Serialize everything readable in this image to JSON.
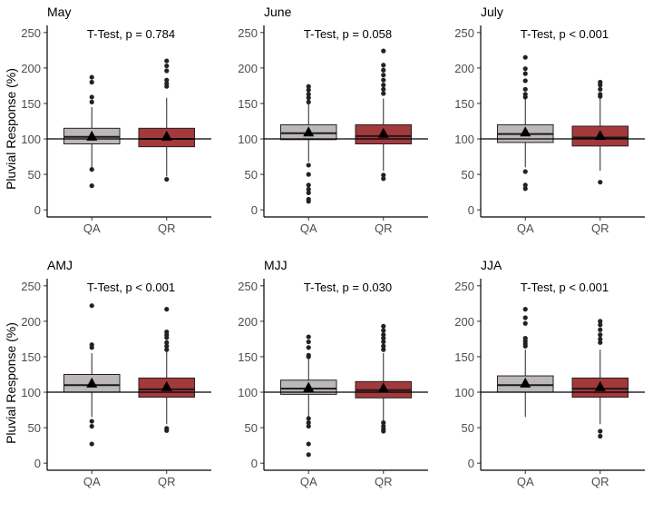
{
  "ylabel": "Pluvial Response (%)",
  "reference_line": 100,
  "colors": {
    "QA": "#bdb8b8",
    "QR": "#a4393c",
    "median": "#1a1a1a",
    "mean": "#000000",
    "outlier": "#222222"
  },
  "chart_data": [
    {
      "type": "boxplot",
      "title": "May",
      "annotation": "T-Test, p = 0.784",
      "ylim": [
        0,
        250
      ],
      "yticks": [
        0,
        50,
        100,
        150,
        200,
        250
      ],
      "categories": [
        "QA",
        "QR"
      ],
      "boxes": [
        {
          "name": "QA",
          "q1": 93,
          "median": 103,
          "q3": 115,
          "whisker_low": 60,
          "whisker_high": 145,
          "mean": 104,
          "outliers": [
            187,
            180,
            159,
            152,
            57,
            34
          ]
        },
        {
          "name": "QR",
          "q1": 89,
          "median": 100,
          "q3": 115,
          "whisker_low": 47,
          "whisker_high": 158,
          "mean": 104,
          "outliers": [
            210,
            203,
            196,
            183,
            178,
            174,
            43
          ]
        }
      ]
    },
    {
      "type": "boxplot",
      "title": "June",
      "annotation": "T-Test, p = 0.058",
      "ylim": [
        0,
        250
      ],
      "yticks": [
        0,
        50,
        100,
        150,
        200,
        250
      ],
      "categories": [
        "QA",
        "QR"
      ],
      "boxes": [
        {
          "name": "QA",
          "q1": 99,
          "median": 108,
          "q3": 120,
          "whisker_low": 68,
          "whisker_high": 150,
          "mean": 110,
          "outliers": [
            174,
            169,
            163,
            158,
            152,
            63,
            50,
            35,
            29,
            24,
            15,
            12
          ]
        },
        {
          "name": "QR",
          "q1": 93,
          "median": 104,
          "q3": 120,
          "whisker_low": 55,
          "whisker_high": 157,
          "mean": 108,
          "outliers": [
            224,
            204,
            197,
            190,
            183,
            176,
            170,
            164,
            49,
            44
          ]
        }
      ]
    },
    {
      "type": "boxplot",
      "title": "July",
      "annotation": "T-Test, p < 0.001",
      "ylim": [
        0,
        250
      ],
      "yticks": [
        0,
        50,
        100,
        150,
        200,
        250
      ],
      "categories": [
        "QA",
        "QR"
      ],
      "boxes": [
        {
          "name": "QA",
          "q1": 95,
          "median": 107,
          "q3": 120,
          "whisker_low": 60,
          "whisker_high": 156,
          "mean": 110,
          "outliers": [
            215,
            199,
            192,
            182,
            170,
            163,
            159,
            54,
            35,
            30
          ]
        },
        {
          "name": "QR",
          "q1": 90,
          "median": 102,
          "q3": 118,
          "whisker_low": 55,
          "whisker_high": 158,
          "mean": 105,
          "outliers": [
            180,
            176,
            170,
            163,
            160,
            39
          ]
        }
      ]
    },
    {
      "type": "boxplot",
      "title": "AMJ",
      "annotation": "T-Test, p < 0.001",
      "ylim": [
        0,
        250
      ],
      "yticks": [
        0,
        50,
        100,
        150,
        200,
        250
      ],
      "categories": [
        "QA",
        "QR"
      ],
      "boxes": [
        {
          "name": "QA",
          "q1": 100,
          "median": 110,
          "q3": 125,
          "whisker_low": 65,
          "whisker_high": 155,
          "mean": 113,
          "outliers": [
            222,
            167,
            163,
            59,
            52,
            27
          ]
        },
        {
          "name": "QR",
          "q1": 93,
          "median": 104,
          "q3": 120,
          "whisker_low": 55,
          "whisker_high": 158,
          "mean": 108,
          "outliers": [
            217,
            185,
            181,
            177,
            170,
            165,
            160,
            49,
            46
          ]
        }
      ]
    },
    {
      "type": "boxplot",
      "title": "MJJ",
      "annotation": "T-Test, p = 0.030",
      "ylim": [
        0,
        250
      ],
      "yticks": [
        0,
        50,
        100,
        150,
        200,
        250
      ],
      "categories": [
        "QA",
        "QR"
      ],
      "boxes": [
        {
          "name": "QA",
          "q1": 97,
          "median": 105,
          "q3": 117,
          "whisker_low": 65,
          "whisker_high": 148,
          "mean": 107,
          "outliers": [
            178,
            171,
            163,
            152,
            150,
            63,
            57,
            52,
            27,
            12
          ]
        },
        {
          "name": "QR",
          "q1": 92,
          "median": 103,
          "q3": 115,
          "whisker_low": 58,
          "whisker_high": 155,
          "mean": 106,
          "outliers": [
            193,
            187,
            181,
            176,
            171,
            165,
            160,
            57,
            52,
            48,
            45
          ]
        }
      ]
    },
    {
      "type": "boxplot",
      "title": "JJA",
      "annotation": "T-Test, p < 0.001",
      "ylim": [
        0,
        250
      ],
      "yticks": [
        0,
        50,
        100,
        150,
        200,
        250
      ],
      "categories": [
        "QA",
        "QR"
      ],
      "boxes": [
        {
          "name": "QA",
          "q1": 100,
          "median": 110,
          "q3": 123,
          "whisker_low": 65,
          "whisker_high": 160,
          "mean": 113,
          "outliers": [
            217,
            205,
            197,
            176,
            172,
            168,
            165
          ]
        },
        {
          "name": "QR",
          "q1": 93,
          "median": 105,
          "q3": 120,
          "whisker_low": 55,
          "whisker_high": 160,
          "mean": 108,
          "outliers": [
            200,
            195,
            188,
            181,
            175,
            170,
            45,
            38
          ]
        }
      ]
    }
  ]
}
